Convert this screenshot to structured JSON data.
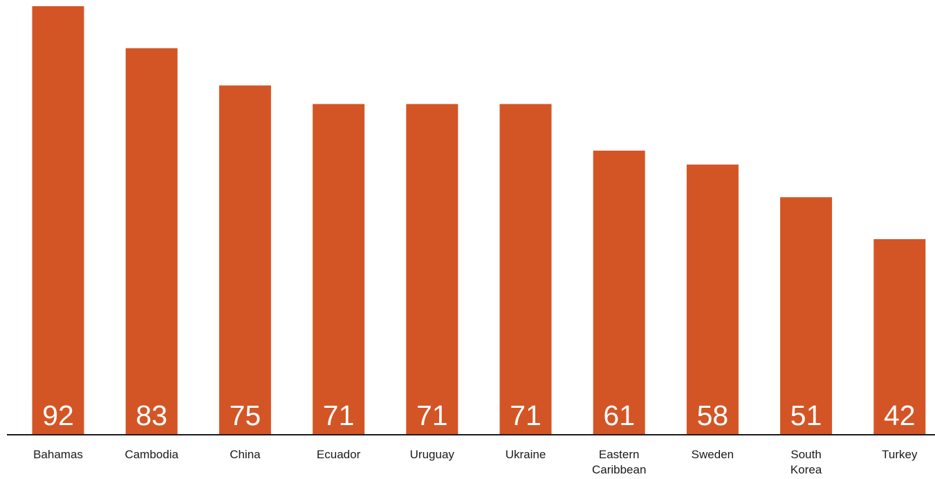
{
  "chart_data": {
    "type": "bar",
    "title": "",
    "xlabel": "",
    "ylabel": "",
    "categories": [
      [
        "Bahamas"
      ],
      [
        "Cambodia"
      ],
      [
        "China"
      ],
      [
        "Ecuador"
      ],
      [
        "Uruguay"
      ],
      [
        "Ukraine"
      ],
      [
        "Eastern",
        "Caribbean"
      ],
      [
        "Sweden"
      ],
      [
        "South",
        "Korea"
      ],
      [
        "Turkey"
      ]
    ],
    "values": [
      92,
      83,
      75,
      71,
      71,
      71,
      61,
      58,
      51,
      42
    ],
    "ylim": [
      0,
      92
    ],
    "grid": false,
    "legend": "none",
    "colors": {
      "bar": "#d35526",
      "value_label": "#ffffff",
      "axis": "#1a1a1a",
      "category_label": "#1a1a1a"
    }
  }
}
